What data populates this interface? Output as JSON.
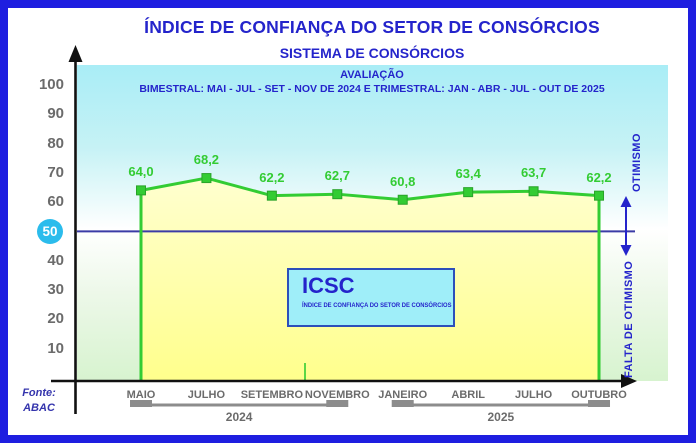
{
  "title": "ÍNDICE DE CONFIANÇA DO SETOR DE CONSÓRCIOS",
  "subtitle": "SISTEMA DE CONSÓRCIOS",
  "plot_heading": "AVALIAÇÃO",
  "plot_subheading": "BIMESTRAL: MAI - JUL - SET - NOV DE 2024 E TRIMESTRAL: JAN - ABR - JUL - OUT DE 2025",
  "legend_box": {
    "acronym": "ICSC",
    "caption": "ÍNDICE DE CONFIANÇA DO SETOR DE CONSÓRCIOS"
  },
  "right_labels": {
    "above_threshold": "OTIMISMO",
    "below_threshold": "FALTA DE OTIMISMO"
  },
  "source": {
    "line1": "Fonte:",
    "line2": "ABAC"
  },
  "colors": {
    "frame_border": "#1e1ee0",
    "heading_blue": "#2424cb",
    "series_green": "#33cc33",
    "marker_edge_green": "#29a329",
    "area_fill_top": "#ffffd0",
    "area_fill_bottom": "#ffff8c",
    "plot_bg_top_cyan": "#a9edf6",
    "plot_bg_bottom_green": "#d7f3cf",
    "threshold_line": "#3b3ba6",
    "arrow_blue": "#2424cb",
    "axis_black": "#111111",
    "tick_text_gray": "#6b6b6b",
    "bracket_gray": "#8c8c8c",
    "badge_cyan": "#2bbcec",
    "legend_bg": "#9feef9"
  },
  "chart_data": {
    "type": "area",
    "title": "ÍNDICE DE CONFIANÇA DO SETOR DE CONSÓRCIOS",
    "categories": [
      "MAIO",
      "JULHO",
      "SETEMBRO",
      "NOVEMBRO",
      "JANEIRO",
      "ABRIL",
      "JULHO",
      "OUTUBRO"
    ],
    "values": [
      64.0,
      68.2,
      62.2,
      62.7,
      60.8,
      63.4,
      63.7,
      62.2
    ],
    "value_labels": [
      "64,0",
      "68,2",
      "62,2",
      "62,7",
      "60,8",
      "63,4",
      "63,7",
      "62,2"
    ],
    "y_ticks": [
      100,
      90,
      80,
      70,
      60,
      50,
      40,
      30,
      20,
      10
    ],
    "highlighted_tick": 50,
    "threshold": 50,
    "ylim": [
      0,
      105
    ],
    "grid": false,
    "legend_position": "none",
    "year_groups": [
      {
        "label": "2024",
        "from_index": 0,
        "to_index": 3
      },
      {
        "label": "2025",
        "from_index": 4,
        "to_index": 7
      }
    ]
  }
}
